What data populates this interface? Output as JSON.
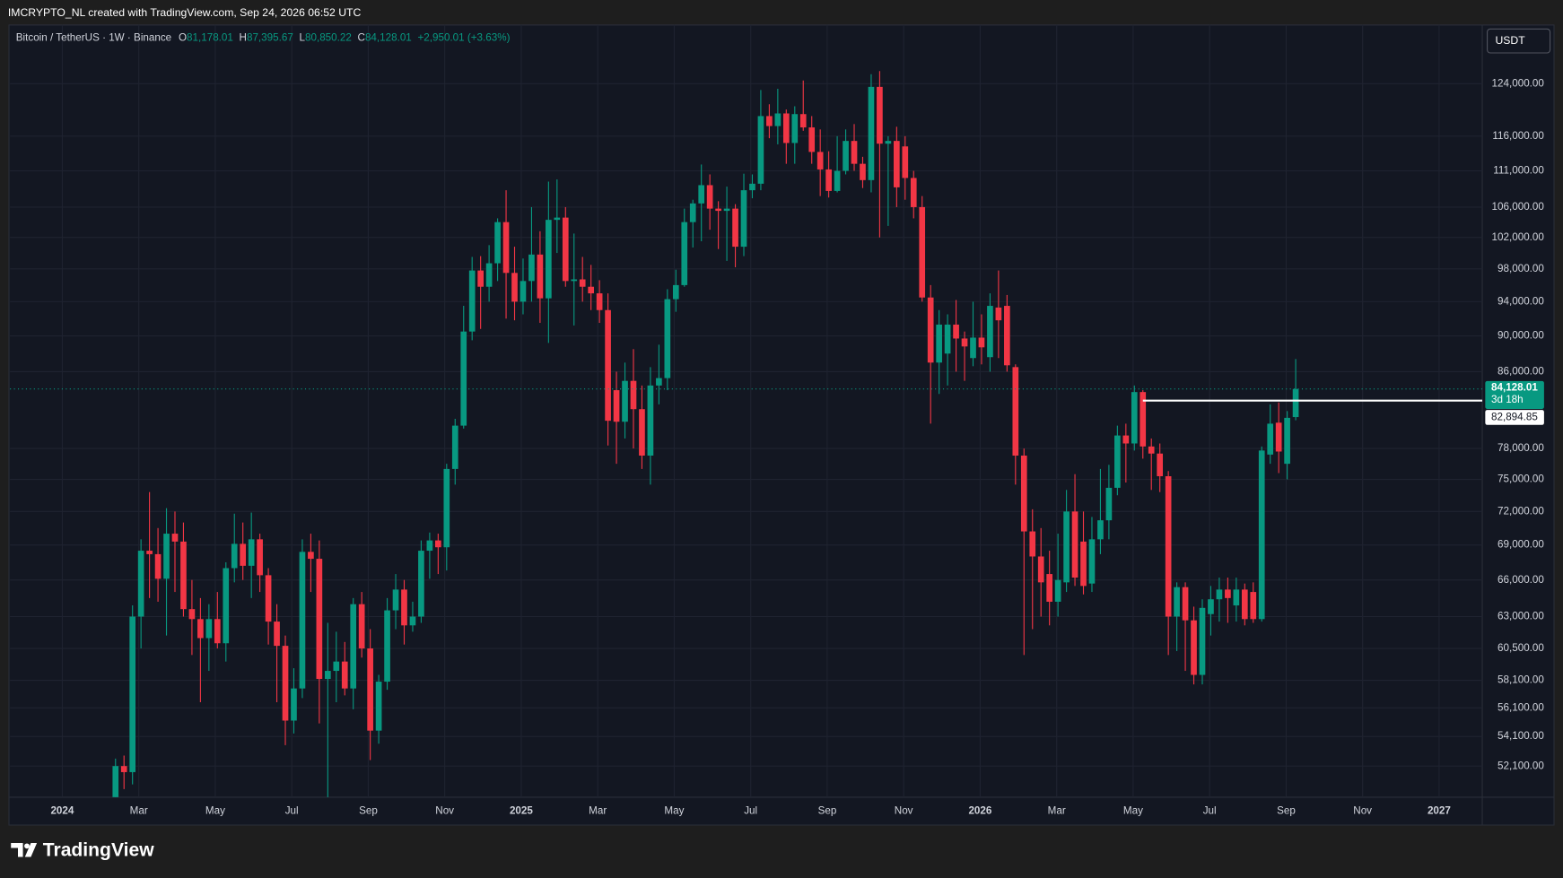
{
  "header": {
    "text": "IMCRYPTO_NL created with TradingView.com, Sep 24, 2026 06:52 UTC"
  },
  "toolbar": {
    "currency": "USDT"
  },
  "legend": {
    "symbol": "Bitcoin / TetherUS · 1W · Binance",
    "ohlc_labels": [
      "O",
      "H",
      "L",
      "C"
    ],
    "ohlc_values": [
      "81,178.01",
      "87,395.67",
      "80,850.22",
      "84,128.01"
    ],
    "change": "+2,950.01 (+3.63%)"
  },
  "footer": {
    "brand": "TradingView"
  },
  "chart_data": {
    "type": "candlestick",
    "log_scale": true,
    "grid": true,
    "up_color": "#089981",
    "down_color": "#f23645",
    "xlim": [
      2023.886,
      2027.094
    ],
    "xticks": [
      2024,
      {
        "value": 2024.1667,
        "label": "Mar"
      },
      {
        "value": 2024.3333,
        "label": "May"
      },
      {
        "value": 2024.5,
        "label": "Jul"
      },
      {
        "value": 2024.6667,
        "label": "Sep"
      },
      {
        "value": 2024.8333,
        "label": "Nov"
      },
      2025,
      {
        "value": 2025.1667,
        "label": "Mar"
      },
      {
        "value": 2025.3333,
        "label": "May"
      },
      {
        "value": 2025.5,
        "label": "Jul"
      },
      {
        "value": 2025.6667,
        "label": "Sep"
      },
      {
        "value": 2025.8333,
        "label": "Nov"
      },
      2026,
      {
        "value": 2026.1667,
        "label": "Mar"
      },
      {
        "value": 2026.3333,
        "label": "May"
      },
      {
        "value": 2026.5,
        "label": "Jul"
      },
      {
        "value": 2026.6667,
        "label": "Sep"
      },
      {
        "value": 2026.8333,
        "label": "Nov"
      },
      2027
    ],
    "ylim": [
      50080,
      133600
    ],
    "yticks": [
      {
        "value": 124000,
        "label": "124,000.00"
      },
      {
        "value": 116000,
        "label": "116,000.00"
      },
      {
        "value": 111000,
        "label": "111,000.00"
      },
      {
        "value": 106000,
        "label": "106,000.00"
      },
      {
        "value": 102000,
        "label": "102,000.00"
      },
      {
        "value": 98000,
        "label": "98,000.00"
      },
      {
        "value": 94000,
        "label": "94,000.00"
      },
      {
        "value": 90000,
        "label": "90,000.00"
      },
      {
        "value": 86000,
        "label": "86,000.00"
      },
      {
        "value": 78000,
        "label": "78,000.00"
      },
      {
        "value": 75000,
        "label": "75,000.00"
      },
      {
        "value": 72000,
        "label": "72,000.00"
      },
      {
        "value": 69000,
        "label": "69,000.00"
      },
      {
        "value": 66000,
        "label": "66,000.00"
      },
      {
        "value": 63000,
        "label": "63,000.00"
      },
      {
        "value": 60500,
        "label": "60,500.00"
      },
      {
        "value": 58100,
        "label": "58,100.00"
      },
      {
        "value": 56100,
        "label": "56,100.00"
      },
      {
        "value": 54100,
        "label": "54,100.00"
      },
      {
        "value": 52100,
        "label": "52,100.00"
      }
    ],
    "price_tag": {
      "value": 84128.01,
      "label": "84,128.01",
      "countdown": "3d 18h"
    },
    "hline": {
      "value": 82894.85,
      "label": "82,894.85",
      "x_start": 2026.3545
    },
    "x": [
      2024.116,
      2024.1345,
      2024.153,
      2024.1715,
      2024.19,
      2024.2085,
      2024.227,
      2024.2455,
      2024.264,
      2024.2825,
      2024.301,
      2024.3195,
      2024.338,
      2024.3565,
      2024.375,
      2024.3935,
      2024.412,
      2024.4305,
      2024.449,
      2024.4675,
      2024.486,
      2024.5045,
      2024.523,
      2024.5415,
      2024.56,
      2024.5785,
      2024.597,
      2024.6155,
      2024.634,
      2024.6525,
      2024.671,
      2024.6895,
      2024.708,
      2024.7265,
      2024.745,
      2024.7635,
      2024.782,
      2024.8005,
      2024.819,
      2024.8375,
      2024.856,
      2024.8745,
      2024.893,
      2024.9115,
      2024.93,
      2024.9485,
      2024.967,
      2024.9855,
      2025.004,
      2025.0225,
      2025.041,
      2025.0595,
      2025.078,
      2025.0965,
      2025.115,
      2025.1335,
      2025.152,
      2025.1705,
      2025.189,
      2025.2075,
      2025.226,
      2025.2445,
      2025.263,
      2025.2815,
      2025.3,
      2025.3185,
      2025.337,
      2025.3555,
      2025.374,
      2025.3925,
      2025.411,
      2025.4295,
      2025.448,
      2025.4665,
      2025.485,
      2025.5035,
      2025.522,
      2025.5405,
      2025.559,
      2025.5775,
      2025.596,
      2025.6145,
      2025.633,
      2025.6515,
      2025.67,
      2025.6885,
      2025.707,
      2025.7255,
      2025.744,
      2025.7625,
      2025.781,
      2025.7995,
      2025.818,
      2025.8365,
      2025.855,
      2025.8735,
      2025.892,
      2025.9105,
      2025.929,
      2025.9475,
      2025.966,
      2025.9845,
      2026.003,
      2026.0215,
      2026.04,
      2026.0585,
      2026.077,
      2026.0955,
      2026.114,
      2026.1325,
      2026.151,
      2026.1695,
      2026.188,
      2026.2065,
      2026.225,
      2026.2435,
      2026.262,
      2026.2805,
      2026.299,
      2026.3175,
      2026.336,
      2026.3545,
      2026.373,
      2026.3915,
      2026.41,
      2026.4285,
      2026.447,
      2026.4655,
      2026.484,
      2026.5025,
      2026.521,
      2026.5395,
      2026.558,
      2026.5765,
      2026.595,
      2026.6135,
      2026.632,
      2026.6505,
      2026.669,
      2026.6875
    ],
    "open": [
      49000,
      52100,
      51700,
      63000,
      68500,
      68200,
      66100,
      70000,
      69300,
      63600,
      62800,
      61300,
      62800,
      60900,
      67000,
      69100,
      67200,
      69500,
      66400,
      62600,
      60700,
      55200,
      57500,
      68400,
      67800,
      58200,
      58800,
      59500,
      57500,
      64000,
      60500,
      54500,
      58000,
      63500,
      65200,
      62300,
      63000,
      68500,
      69400,
      68800,
      76000,
      80300,
      90500,
      97800,
      95800,
      98700,
      104000,
      97500,
      94000,
      96500,
      99800,
      94400,
      104300,
      104600,
      96500,
      96700,
      95800,
      95000,
      93000,
      84000,
      80700,
      85000,
      82000,
      77300,
      84500,
      85300,
      94300,
      96000,
      104000,
      106500,
      109000,
      105800,
      105500,
      105800,
      100800,
      108300,
      109200,
      119000,
      117500,
      119400,
      115000,
      119300,
      117300,
      113700,
      111200,
      108200,
      111000,
      115300,
      112000,
      109700,
      123500,
      114900,
      115300,
      114500,
      110000,
      106000,
      94500,
      87000,
      88000,
      91300,
      89700,
      87500,
      89800,
      87600,
      93300,
      93500,
      86500,
      77300,
      70200,
      68000,
      66500,
      64200,
      65800,
      72000,
      69300,
      65700,
      69500,
      71200,
      74200,
      79300,
      78500,
      83800,
      78200,
      77500,
      75300,
      63000,
      65400,
      62700,
      58500,
      63200,
      64400,
      65200,
      63900,
      65200,
      65000,
      62800,
      77400,
      80600,
      76500,
      81178.01
    ],
    "high": [
      52600,
      52800,
      63900,
      69500,
      73800,
      70500,
      72300,
      72000,
      71000,
      66000,
      64500,
      64000,
      65000,
      67500,
      71800,
      71000,
      71900,
      70000,
      67000,
      64000,
      61500,
      59000,
      69500,
      70000,
      69400,
      62500,
      61800,
      61000,
      64500,
      65000,
      62000,
      58500,
      64500,
      66500,
      66000,
      64200,
      69400,
      70100,
      70000,
      76500,
      81000,
      93500,
      99500,
      99600,
      101000,
      104500,
      108300,
      100800,
      99300,
      106000,
      102800,
      109500,
      109800,
      106000,
      102500,
      99500,
      98500,
      96600,
      95000,
      86000,
      87000,
      88500,
      84500,
      86500,
      89000,
      95500,
      97900,
      105800,
      107000,
      111900,
      110500,
      106800,
      108800,
      106400,
      110600,
      110500,
      123000,
      120800,
      123200,
      120000,
      120500,
      124500,
      119000,
      117000,
      113800,
      116000,
      117000,
      117800,
      113000,
      125500,
      126000,
      116000,
      117400,
      116000,
      111000,
      107500,
      96000,
      93000,
      92500,
      94200,
      90500,
      94000,
      92500,
      95000,
      97800,
      94800,
      86800,
      78000,
      72200,
      70500,
      68500,
      70000,
      74000,
      75500,
      72000,
      71500,
      76000,
      76400,
      80300,
      80500,
      84500,
      84000,
      79000,
      78500,
      75800,
      65800,
      65800,
      63800,
      64400,
      65500,
      66200,
      66200,
      66200,
      65700,
      65800,
      78200,
      82500,
      82700,
      81800,
      87395.67
    ],
    "low": [
      48500,
      50600,
      50900,
      60500,
      64500,
      64200,
      61500,
      65000,
      63000,
      60000,
      56500,
      58800,
      60500,
      59500,
      65800,
      66000,
      64500,
      65000,
      60800,
      56500,
      53500,
      54300,
      56800,
      65000,
      55000,
      49500,
      56500,
      57000,
      56000,
      59800,
      52500,
      53600,
      57400,
      62000,
      60800,
      61800,
      62500,
      66100,
      66500,
      66800,
      74500,
      80000,
      89500,
      90800,
      94000,
      96500,
      92000,
      91800,
      92500,
      94000,
      91500,
      89200,
      100000,
      95800,
      91200,
      94000,
      93000,
      91500,
      78300,
      76500,
      79000,
      78000,
      76000,
      74500,
      82500,
      84000,
      92800,
      95800,
      100700,
      101500,
      103000,
      100500,
      99000,
      98200,
      99600,
      107200,
      108300,
      115700,
      114800,
      112000,
      112000,
      116800,
      112000,
      107500,
      107300,
      108000,
      110500,
      111000,
      108600,
      108000,
      102000,
      103500,
      106000,
      107000,
      104500,
      94000,
      80500,
      83600,
      84500,
      86000,
      85000,
      86600,
      86800,
      86000,
      87500,
      86000,
      74500,
      60000,
      62000,
      63000,
      62300,
      63000,
      65000,
      65500,
      64800,
      65000,
      68200,
      69500,
      73500,
      74700,
      77800,
      77000,
      74000,
      73800,
      60000,
      60300,
      58800,
      57800,
      57800,
      61500,
      62600,
      62500,
      62600,
      62300,
      62500,
      62600,
      76500,
      75600,
      75000,
      80850.22
    ],
    "close": [
      52100,
      51700,
      63000,
      68500,
      68200,
      66100,
      70000,
      69300,
      63600,
      62800,
      61300,
      62800,
      60900,
      67000,
      69100,
      67200,
      69500,
      66400,
      62600,
      60700,
      55200,
      57500,
      68400,
      67800,
      58200,
      58800,
      59500,
      57500,
      64000,
      60500,
      54500,
      58000,
      63500,
      65200,
      62300,
      63000,
      68500,
      69400,
      68800,
      76000,
      80300,
      90500,
      97800,
      95800,
      98700,
      104000,
      97500,
      94000,
      96500,
      99800,
      94400,
      104300,
      104600,
      96500,
      96700,
      95800,
      95000,
      93000,
      80800,
      80700,
      85000,
      82000,
      77300,
      84500,
      85300,
      94300,
      96000,
      104000,
      106500,
      109000,
      105800,
      105500,
      105800,
      100800,
      108300,
      109200,
      119000,
      117500,
      119400,
      115000,
      119300,
      117300,
      113700,
      111200,
      108200,
      111000,
      115300,
      112000,
      109700,
      123500,
      114900,
      115300,
      108700,
      110000,
      106000,
      94500,
      87000,
      91300,
      91300,
      89700,
      88800,
      89800,
      88700,
      93500,
      91800,
      86700,
      77300,
      70200,
      68000,
      65800,
      64200,
      66000,
      72000,
      66200,
      65500,
      69500,
      71200,
      74200,
      79300,
      78500,
      83800,
      78200,
      77500,
      75300,
      63000,
      65400,
      62700,
      58500,
      63700,
      64400,
      65200,
      64500,
      65200,
      62800,
      62800,
      77800,
      80500,
      77700,
      81100,
      84128.01
    ]
  }
}
